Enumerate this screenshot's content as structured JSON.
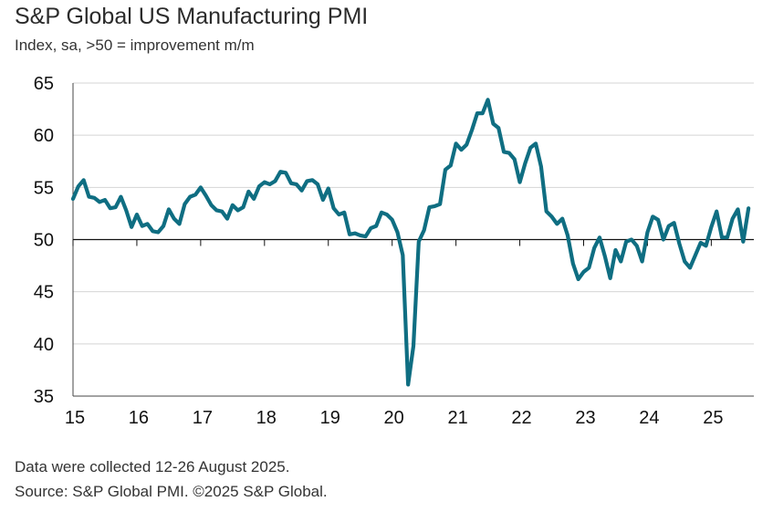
{
  "header": {
    "title": "S&P Global US Manufacturing PMI",
    "subtitle": "Index, sa, >50 = improvement m/m"
  },
  "footer": {
    "note": "Data were collected 12-26 August 2025.",
    "source": "Source: S&P Global PMI. ©2025 S&P Global."
  },
  "colors": {
    "line": "#0f6e82",
    "grid": "#d4d4d4",
    "axis": "#444444"
  },
  "chart_data": {
    "type": "line",
    "title": "S&P Global US Manufacturing PMI",
    "ylabel": "Index, sa, >50 = improvement m/m",
    "xlabel": "",
    "ylim": [
      35,
      65
    ],
    "yticks": [
      35,
      40,
      45,
      50,
      55,
      60,
      65
    ],
    "xlim": [
      2015,
      2025.6667
    ],
    "xticks": [
      {
        "x": 2015,
        "label": "15"
      },
      {
        "x": 2016,
        "label": "16"
      },
      {
        "x": 2017,
        "label": "17"
      },
      {
        "x": 2018,
        "label": "18"
      },
      {
        "x": 2019,
        "label": "19"
      },
      {
        "x": 2020,
        "label": "20"
      },
      {
        "x": 2021,
        "label": "21"
      },
      {
        "x": 2022,
        "label": "22"
      },
      {
        "x": 2023,
        "label": "23"
      },
      {
        "x": 2024,
        "label": "24"
      },
      {
        "x": 2025,
        "label": "25"
      }
    ],
    "reference_line": 50,
    "grid": true,
    "series": [
      {
        "name": "US Manufacturing PMI",
        "start": "2015-01",
        "frequency": "monthly",
        "values": [
          53.9,
          55.1,
          55.7,
          54.1,
          54.0,
          53.6,
          53.8,
          53.0,
          53.1,
          54.1,
          52.8,
          51.2,
          52.4,
          51.3,
          51.5,
          50.8,
          50.7,
          51.3,
          52.9,
          52.0,
          51.5,
          53.4,
          54.1,
          54.3,
          55.0,
          54.2,
          53.3,
          52.8,
          52.7,
          52.0,
          53.3,
          52.8,
          53.1,
          54.6,
          53.9,
          55.1,
          55.5,
          55.3,
          55.6,
          56.5,
          56.4,
          55.4,
          55.3,
          54.7,
          55.6,
          55.7,
          55.3,
          53.8,
          54.9,
          53.0,
          52.4,
          52.6,
          50.5,
          50.6,
          50.4,
          50.3,
          51.1,
          51.3,
          52.6,
          52.4,
          51.9,
          50.7,
          48.5,
          36.1,
          39.8,
          49.8,
          50.9,
          53.1,
          53.2,
          53.4,
          56.7,
          57.1,
          59.2,
          58.6,
          59.1,
          60.5,
          62.1,
          62.1,
          63.4,
          61.1,
          60.7,
          58.4,
          58.3,
          57.7,
          55.5,
          57.3,
          58.8,
          59.2,
          57.0,
          52.7,
          52.2,
          51.5,
          52.0,
          50.4,
          47.7,
          46.2,
          46.9,
          47.3,
          49.2,
          50.2,
          48.4,
          46.3,
          49.0,
          47.9,
          49.8,
          50.0,
          49.4,
          47.9,
          50.7,
          52.2,
          51.9,
          50.0,
          51.3,
          51.6,
          49.6,
          47.9,
          47.3,
          48.5,
          49.7,
          49.4,
          51.2,
          52.7,
          50.2,
          50.2,
          52.0,
          52.9,
          49.8,
          53.0
        ]
      }
    ]
  }
}
